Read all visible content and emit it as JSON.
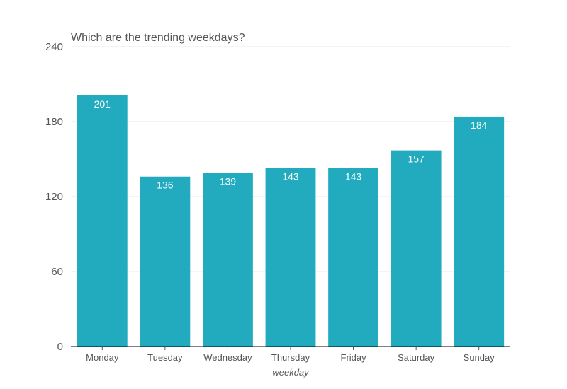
{
  "chart_data": {
    "type": "bar",
    "title": "Which are the trending weekdays?",
    "xlabel": "weekday",
    "ylabel": "",
    "categories": [
      "Monday",
      "Tuesday",
      "Wednesday",
      "Thursday",
      "Friday",
      "Saturday",
      "Sunday"
    ],
    "values": [
      201,
      136,
      139,
      143,
      143,
      157,
      184
    ],
    "ylim": [
      0,
      240
    ],
    "yticks": [
      0,
      60,
      120,
      180,
      240
    ],
    "grid": true,
    "bar_color": "#22abbf",
    "label_color": "#ffffff"
  }
}
